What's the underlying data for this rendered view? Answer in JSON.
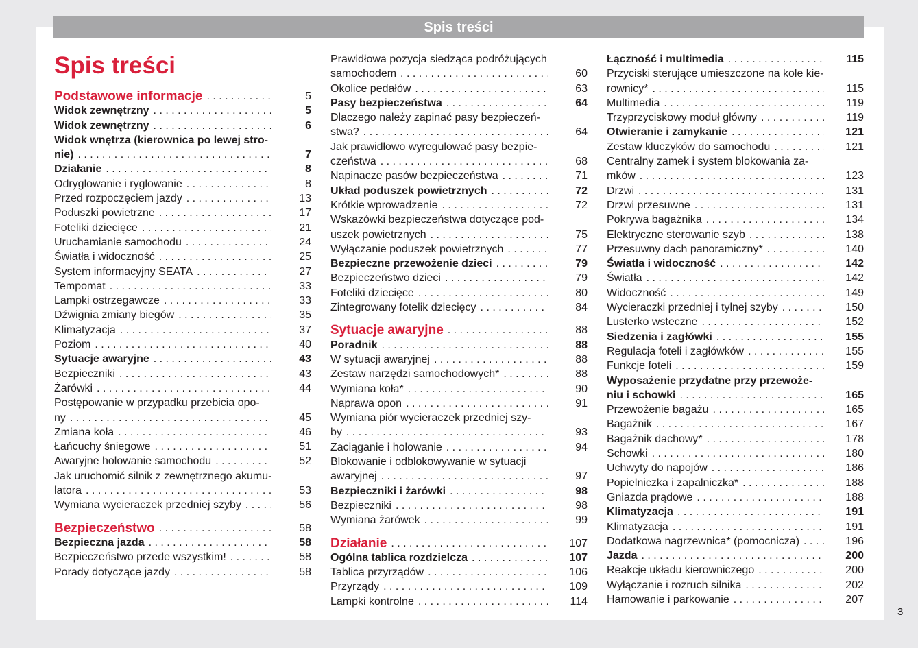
{
  "header": {
    "title": "Spis treści"
  },
  "page_title": "Spis treści",
  "page_number": "3",
  "colors": {
    "accent": "#d9203b",
    "header_bar": "#a7a7a9"
  },
  "columns": [
    {
      "entries": [
        {
          "s": "h",
          "t": [
            "Podstawowe informacje"
          ],
          "p": "5"
        },
        {
          "s": "b",
          "t": [
            "Widok zewnętrzny"
          ],
          "p": "5"
        },
        {
          "s": "b",
          "t": [
            "Widok zewnętrzny"
          ],
          "p": "6"
        },
        {
          "s": "b",
          "t": [
            "Widok wnętrza (kierownica po lewej stro-",
            "nie)"
          ],
          "p": "7"
        },
        {
          "s": "b",
          "t": [
            "Działanie"
          ],
          "p": "8"
        },
        {
          "s": "n",
          "t": [
            "Odryglowanie i ryglowanie"
          ],
          "p": "8"
        },
        {
          "s": "n",
          "t": [
            "Przed rozpoczęciem jazdy"
          ],
          "p": "13"
        },
        {
          "s": "n",
          "t": [
            "Poduszki powietrzne"
          ],
          "p": "17"
        },
        {
          "s": "n",
          "t": [
            "Foteliki dziecięce"
          ],
          "p": "21"
        },
        {
          "s": "n",
          "t": [
            "Uruchamianie samochodu"
          ],
          "p": "24"
        },
        {
          "s": "n",
          "t": [
            "Światła i widoczność"
          ],
          "p": "25"
        },
        {
          "s": "n",
          "t": [
            "System informacyjny SEATA"
          ],
          "p": "27"
        },
        {
          "s": "n",
          "t": [
            "Tempomat"
          ],
          "p": "33"
        },
        {
          "s": "n",
          "t": [
            "Lampki ostrzegawcze"
          ],
          "p": "33"
        },
        {
          "s": "n",
          "t": [
            "Dźwignia zmiany biegów"
          ],
          "p": "35"
        },
        {
          "s": "n",
          "t": [
            "Klimatyzacja"
          ],
          "p": "37"
        },
        {
          "s": "n",
          "t": [
            "Poziom"
          ],
          "p": "40"
        },
        {
          "s": "b",
          "t": [
            "Sytuacje awaryjne"
          ],
          "p": "43"
        },
        {
          "s": "n",
          "t": [
            "Bezpieczniki"
          ],
          "p": "43"
        },
        {
          "s": "n",
          "t": [
            "Żarówki"
          ],
          "p": "44"
        },
        {
          "s": "n",
          "t": [
            "Postępowanie w przypadku przebicia opo-",
            "ny"
          ],
          "p": "45"
        },
        {
          "s": "n",
          "t": [
            "Zmiana koła"
          ],
          "p": "46"
        },
        {
          "s": "n",
          "t": [
            "Łańcuchy śniegowe"
          ],
          "p": "51"
        },
        {
          "s": "n",
          "t": [
            "Awaryjne holowanie samochodu"
          ],
          "p": "52"
        },
        {
          "s": "n",
          "t": [
            "Jak uruchomić silnik z zewnętrznego akumu-",
            "latora"
          ],
          "p": "53"
        },
        {
          "s": "n",
          "t": [
            "Wymiana wycieraczek przedniej szyby"
          ],
          "p": "56"
        },
        {
          "s": "h",
          "t": [
            "Bezpieczeństwo"
          ],
          "p": "58"
        },
        {
          "s": "b",
          "t": [
            "Bezpieczna jazda"
          ],
          "p": "58"
        },
        {
          "s": "n",
          "t": [
            "Bezpieczeństwo przede wszystkim!"
          ],
          "p": "58"
        },
        {
          "s": "n",
          "t": [
            "Porady dotyczące jazdy"
          ],
          "p": "58"
        }
      ]
    },
    {
      "entries": [
        {
          "s": "n",
          "t": [
            "Prawidłowa pozycja siedząca podróżujących",
            "samochodem"
          ],
          "p": "60"
        },
        {
          "s": "n",
          "t": [
            "Okolice pedałów"
          ],
          "p": "63"
        },
        {
          "s": "b",
          "t": [
            "Pasy bezpieczeństwa"
          ],
          "p": "64"
        },
        {
          "s": "n",
          "t": [
            "Dlaczego należy zapinać pasy bezpieczeń-",
            "stwa?"
          ],
          "p": "64"
        },
        {
          "s": "n",
          "t": [
            "Jak prawidłowo wyregulować pasy bezpie-",
            "czeństwa"
          ],
          "p": "68"
        },
        {
          "s": "n",
          "t": [
            "Napinacze pasów bezpieczeństwa"
          ],
          "p": "71"
        },
        {
          "s": "b",
          "t": [
            "Układ poduszek powietrznych"
          ],
          "p": "72"
        },
        {
          "s": "n",
          "t": [
            "Krótkie wprowadzenie"
          ],
          "p": "72"
        },
        {
          "s": "n",
          "t": [
            "Wskazówki bezpieczeństwa dotyczące pod-",
            "uszek powietrznych"
          ],
          "p": "75"
        },
        {
          "s": "n",
          "t": [
            "Wyłączanie poduszek powietrznych"
          ],
          "p": "77"
        },
        {
          "s": "b",
          "t": [
            "Bezpieczne przewożenie dzieci"
          ],
          "p": "79"
        },
        {
          "s": "n",
          "t": [
            "Bezpieczeństwo dzieci"
          ],
          "p": "79"
        },
        {
          "s": "n",
          "t": [
            "Foteliki dziecięce"
          ],
          "p": "80"
        },
        {
          "s": "n",
          "t": [
            "Zintegrowany fotelik dziecięcy"
          ],
          "p": "84"
        },
        {
          "s": "h",
          "t": [
            "Sytuacje awaryjne"
          ],
          "p": "88"
        },
        {
          "s": "b",
          "t": [
            "Poradnik"
          ],
          "p": "88"
        },
        {
          "s": "n",
          "t": [
            "W sytuacji awaryjnej"
          ],
          "p": "88"
        },
        {
          "s": "n",
          "t": [
            "Zestaw narzędzi samochodowych*"
          ],
          "p": "88"
        },
        {
          "s": "n",
          "t": [
            "Wymiana koła*"
          ],
          "p": "90"
        },
        {
          "s": "n",
          "t": [
            "Naprawa opon"
          ],
          "p": "91"
        },
        {
          "s": "n",
          "t": [
            "Wymiana piór wycieraczek przedniej szy-",
            "by"
          ],
          "p": "93"
        },
        {
          "s": "n",
          "t": [
            "Zaciąganie i holowanie"
          ],
          "p": "94"
        },
        {
          "s": "n",
          "t": [
            "Blokowanie i odblokowywanie w sytuacji",
            "awaryjnej"
          ],
          "p": "97"
        },
        {
          "s": "b",
          "t": [
            "Bezpieczniki i żarówki"
          ],
          "p": "98"
        },
        {
          "s": "n",
          "t": [
            "Bezpieczniki"
          ],
          "p": "98"
        },
        {
          "s": "n",
          "t": [
            "Wymiana żarówek"
          ],
          "p": "99"
        },
        {
          "s": "h",
          "t": [
            "Działanie"
          ],
          "p": "107"
        },
        {
          "s": "b",
          "t": [
            "Ogólna tablica rozdzielcza"
          ],
          "p": "107"
        },
        {
          "s": "n",
          "t": [
            "Tablica przyrządów"
          ],
          "p": "106"
        },
        {
          "s": "n",
          "t": [
            "Przyrządy"
          ],
          "p": "109"
        },
        {
          "s": "n",
          "t": [
            "Lampki kontrolne"
          ],
          "p": "114"
        }
      ]
    },
    {
      "entries": [
        {
          "s": "b",
          "t": [
            "Łączność i multimedia"
          ],
          "p": "115"
        },
        {
          "s": "n",
          "t": [
            "Przyciski sterujące umieszczone na kole kie-",
            "rownicy*"
          ],
          "p": "115"
        },
        {
          "s": "n",
          "t": [
            "Multimedia"
          ],
          "p": "119"
        },
        {
          "s": "n",
          "t": [
            "Trzyprzyciskowy moduł główny"
          ],
          "p": "119"
        },
        {
          "s": "b",
          "t": [
            "Otwieranie i zamykanie"
          ],
          "p": "121"
        },
        {
          "s": "n",
          "t": [
            "Zestaw kluczyków do samochodu"
          ],
          "p": "121"
        },
        {
          "s": "n",
          "t": [
            "Centralny zamek i system blokowania za-",
            "mków"
          ],
          "p": "123"
        },
        {
          "s": "n",
          "t": [
            "Drzwi"
          ],
          "p": "131"
        },
        {
          "s": "n",
          "t": [
            "Drzwi przesuwne"
          ],
          "p": "131"
        },
        {
          "s": "n",
          "t": [
            "Pokrywa bagażnika"
          ],
          "p": "134"
        },
        {
          "s": "n",
          "t": [
            "Elektryczne sterowanie szyb"
          ],
          "p": "138"
        },
        {
          "s": "n",
          "t": [
            "Przesuwny dach panoramiczny*"
          ],
          "p": "140"
        },
        {
          "s": "b",
          "t": [
            "Światła i widoczność"
          ],
          "p": "142"
        },
        {
          "s": "n",
          "t": [
            "Światła"
          ],
          "p": "142"
        },
        {
          "s": "n",
          "t": [
            "Widoczność"
          ],
          "p": "149"
        },
        {
          "s": "n",
          "t": [
            "Wycieraczki przedniej i tylnej szyby"
          ],
          "p": "150"
        },
        {
          "s": "n",
          "t": [
            "Lusterko wsteczne"
          ],
          "p": "152"
        },
        {
          "s": "b",
          "t": [
            "Siedzenia i zagłówki"
          ],
          "p": "155"
        },
        {
          "s": "n",
          "t": [
            "Regulacja foteli i zagłówków"
          ],
          "p": "155"
        },
        {
          "s": "n",
          "t": [
            "Funkcje foteli"
          ],
          "p": "159"
        },
        {
          "s": "b",
          "t": [
            "Wyposażenie przydatne przy przewoże-",
            "niu i schowki"
          ],
          "p": "165"
        },
        {
          "s": "n",
          "t": [
            "Przewożenie bagażu"
          ],
          "p": "165"
        },
        {
          "s": "n",
          "t": [
            "Bagażnik"
          ],
          "p": "167"
        },
        {
          "s": "n",
          "t": [
            "Bagażnik dachowy*"
          ],
          "p": "178"
        },
        {
          "s": "n",
          "t": [
            "Schowki"
          ],
          "p": "180"
        },
        {
          "s": "n",
          "t": [
            "Uchwyty do napojów"
          ],
          "p": "186"
        },
        {
          "s": "n",
          "t": [
            "Popielniczka i zapalniczka*"
          ],
          "p": "188"
        },
        {
          "s": "n",
          "t": [
            "Gniazda prądowe"
          ],
          "p": "188"
        },
        {
          "s": "b",
          "t": [
            "Klimatyzacja"
          ],
          "p": "191"
        },
        {
          "s": "n",
          "t": [
            "Klimatyzacja"
          ],
          "p": "191"
        },
        {
          "s": "n",
          "t": [
            "Dodatkowa nagrzewnica* (pomocnicza)"
          ],
          "p": "196"
        },
        {
          "s": "b",
          "t": [
            "Jazda"
          ],
          "p": "200"
        },
        {
          "s": "n",
          "t": [
            "Reakcje układu kierowniczego"
          ],
          "p": "200"
        },
        {
          "s": "n",
          "t": [
            "Wyłączanie i rozruch silnika"
          ],
          "p": "202"
        },
        {
          "s": "n",
          "t": [
            "Hamowanie i parkowanie"
          ],
          "p": "207"
        }
      ]
    }
  ]
}
